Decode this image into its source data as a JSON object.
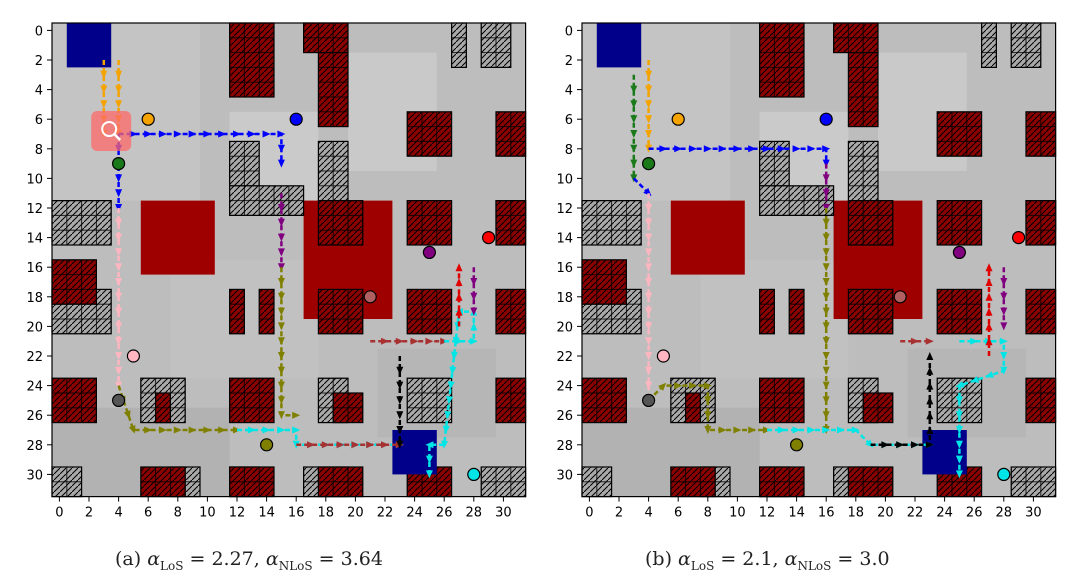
{
  "colors": {
    "wall_gray": "#a9a9a9",
    "wall_red": "#8b0000",
    "start_blue": "#00008b",
    "big_red": "#9e0000",
    "grid_bg": "#bdbdbd"
  },
  "captions": {
    "a": {
      "label": "(a)",
      "p1": "α",
      "s1": "LoS",
      "v1": " = 2.27, ",
      "p2": "α",
      "s2": "NLoS",
      "v2": " = 3.64"
    },
    "b": {
      "label": "(b)",
      "p1": "α",
      "s1": "LoS",
      "v1": " = 2.1, ",
      "p2": "α",
      "s2": "NLoS",
      "v2": " = 3.0"
    }
  },
  "chart_data": [
    {
      "type": "heatmap",
      "title": "",
      "xlim": [
        -0.5,
        31.5
      ],
      "ylim": [
        31.5,
        -0.5
      ],
      "xticks": [
        0,
        2,
        4,
        6,
        8,
        10,
        12,
        14,
        16,
        18,
        20,
        22,
        24,
        26,
        28,
        30
      ],
      "yticks": [
        0,
        2,
        4,
        6,
        8,
        10,
        12,
        14,
        16,
        18,
        20,
        22,
        24,
        26,
        28,
        30
      ],
      "gray_walls": [
        [
          29,
          0,
          2,
          3
        ],
        [
          27,
          0,
          1,
          3
        ],
        [
          12,
          8,
          2,
          4
        ],
        [
          12,
          11,
          5,
          2
        ],
        [
          18,
          8,
          2,
          4
        ],
        [
          0,
          12,
          4,
          3
        ],
        [
          0,
          18,
          4,
          3
        ],
        [
          6,
          24,
          3,
          3
        ],
        [
          18,
          24,
          2,
          3
        ],
        [
          24,
          24,
          3,
          3
        ],
        [
          0,
          30,
          2,
          2
        ],
        [
          17,
          30,
          3,
          2
        ],
        [
          12,
          30,
          2,
          2
        ],
        [
          29,
          30,
          3,
          2
        ],
        [
          8,
          30,
          2,
          2
        ],
        [
          30,
          12,
          2,
          2
        ]
      ],
      "red_walls": [
        [
          12,
          0,
          3,
          5
        ],
        [
          17,
          0,
          3,
          2
        ],
        [
          18,
          2,
          2,
          5
        ],
        [
          24,
          6,
          3,
          3
        ],
        [
          30,
          6,
          2,
          3
        ],
        [
          18,
          12,
          3,
          3
        ],
        [
          24,
          12,
          3,
          3
        ],
        [
          30,
          12,
          2,
          3
        ],
        [
          0,
          16,
          3,
          3
        ],
        [
          18,
          18,
          3,
          3
        ],
        [
          24,
          18,
          3,
          3
        ],
        [
          30,
          18,
          2,
          3
        ],
        [
          12,
          18,
          1,
          3
        ],
        [
          14,
          18,
          1,
          3
        ],
        [
          0,
          24,
          3,
          3
        ],
        [
          7,
          25,
          1,
          2
        ],
        [
          12,
          24,
          3,
          3
        ],
        [
          19,
          25,
          2,
          2
        ],
        [
          30,
          24,
          2,
          3
        ],
        [
          6,
          30,
          3,
          2
        ],
        [
          12,
          30,
          3,
          2
        ],
        [
          18,
          30,
          3,
          2
        ],
        [
          24,
          30,
          3,
          2
        ]
      ],
      "big_red": [
        [
          6,
          12,
          5,
          5
        ],
        [
          17,
          12,
          6,
          8
        ],
        [
          22,
          13,
          1,
          0
        ]
      ],
      "blue_squares": [
        [
          1,
          0,
          3,
          3
        ],
        [
          23,
          27.5,
          3,
          3
        ]
      ],
      "markers": [
        {
          "x": 6,
          "y": 6,
          "color": "#f4a300"
        },
        {
          "x": 16,
          "y": 6,
          "color": "#0000ff"
        },
        {
          "x": 4,
          "y": 9,
          "color": "#1a7a1a"
        },
        {
          "x": 29,
          "y": 14,
          "color": "#ff0000"
        },
        {
          "x": 25,
          "y": 15,
          "color": "#800080"
        },
        {
          "x": 21,
          "y": 18,
          "color": "#b06060"
        },
        {
          "x": 5,
          "y": 22,
          "color": "#ffb6c1"
        },
        {
          "x": 4,
          "y": 25,
          "color": "#555555"
        },
        {
          "x": 14,
          "y": 28,
          "color": "#808000"
        },
        {
          "x": 28,
          "y": 30,
          "color": "#00e5e5"
        }
      ],
      "paths": [
        {
          "name": "orange",
          "color": "#f4a300",
          "points": [
            [
              3,
              2
            ],
            [
              3,
              7
            ]
          ]
        },
        {
          "name": "orange2",
          "color": "#f4a300",
          "points": [
            [
              4,
              2
            ],
            [
              4,
              7
            ]
          ]
        },
        {
          "name": "blue",
          "color": "#0000ff",
          "points": [
            [
              4,
              7
            ],
            [
              15,
              7
            ],
            [
              15,
              9
            ]
          ]
        },
        {
          "name": "blue2",
          "color": "#0000ff",
          "points": [
            [
              4,
              7
            ],
            [
              4,
              12
            ]
          ]
        },
        {
          "name": "pink",
          "color": "#ffb6c1",
          "points": [
            [
              4,
              12
            ],
            [
              4,
              24
            ]
          ]
        },
        {
          "name": "olive",
          "color": "#808000",
          "points": [
            [
              4,
              24
            ],
            [
              5,
              27
            ],
            [
              12,
              27
            ]
          ]
        },
        {
          "name": "purple",
          "color": "#800080",
          "points": [
            [
              15,
              11
            ],
            [
              15,
              16
            ]
          ]
        },
        {
          "name": "olive2",
          "color": "#808000",
          "points": [
            [
              15,
              16
            ],
            [
              15,
              26
            ],
            [
              16,
              26
            ]
          ]
        },
        {
          "name": "cyan",
          "color": "#00e5e5",
          "points": [
            [
              12,
              27
            ],
            [
              16,
              27
            ],
            [
              16,
              28
            ],
            [
              23,
              28
            ]
          ]
        },
        {
          "name": "brown",
          "color": "#a83232",
          "points": [
            [
              16,
              28
            ],
            [
              23,
              28
            ]
          ]
        },
        {
          "name": "brown2",
          "color": "#a83232",
          "points": [
            [
              21,
              21
            ],
            [
              26,
              21
            ]
          ]
        },
        {
          "name": "black",
          "color": "#000000",
          "points": [
            [
              23,
              22
            ],
            [
              23,
              28
            ]
          ]
        },
        {
          "name": "cyan2",
          "color": "#00e5e5",
          "points": [
            [
              26,
              21
            ],
            [
              28,
              21
            ],
            [
              28,
              19
            ],
            [
              27,
              19
            ],
            [
              26,
              28
            ],
            [
              25,
              28
            ],
            [
              25,
              30
            ]
          ]
        },
        {
          "name": "red",
          "color": "#e00000",
          "points": [
            [
              27,
              20
            ],
            [
              27,
              16
            ]
          ]
        },
        {
          "name": "purple2",
          "color": "#800080",
          "points": [
            [
              28,
              16
            ],
            [
              28,
              19
            ]
          ]
        }
      ],
      "start_marker": {
        "x": 3.5,
        "y": 6.8,
        "label": "search"
      }
    },
    {
      "type": "heatmap",
      "title": "",
      "xlim": [
        -0.5,
        31.5
      ],
      "ylim": [
        31.5,
        -0.5
      ],
      "xticks": [
        0,
        2,
        4,
        6,
        8,
        10,
        12,
        14,
        16,
        18,
        20,
        22,
        24,
        26,
        28,
        30
      ],
      "yticks": [
        0,
        2,
        4,
        6,
        8,
        10,
        12,
        14,
        16,
        18,
        20,
        22,
        24,
        26,
        28,
        30
      ],
      "paths": [
        {
          "name": "orange",
          "color": "#f4a300",
          "points": [
            [
              4,
              2
            ],
            [
              4,
              8
            ]
          ]
        },
        {
          "name": "green",
          "color": "#1a7a1a",
          "points": [
            [
              3,
              3
            ],
            [
              3,
              10
            ]
          ]
        },
        {
          "name": "blue",
          "color": "#0000ff",
          "points": [
            [
              4,
              8
            ],
            [
              16,
              8
            ],
            [
              16,
              9
            ]
          ]
        },
        {
          "name": "blue2",
          "color": "#0000ff",
          "points": [
            [
              3,
              10
            ],
            [
              4,
              11
            ]
          ]
        },
        {
          "name": "pink",
          "color": "#ffb6c1",
          "points": [
            [
              4,
              11
            ],
            [
              4,
              25
            ]
          ]
        },
        {
          "name": "olive",
          "color": "#808000",
          "points": [
            [
              4,
              25
            ],
            [
              5,
              24
            ],
            [
              8,
              24
            ],
            [
              8,
              27
            ],
            [
              12,
              27
            ]
          ]
        },
        {
          "name": "purple",
          "color": "#800080",
          "points": [
            [
              16,
              9
            ],
            [
              16,
              12
            ]
          ]
        },
        {
          "name": "olive2",
          "color": "#808000",
          "points": [
            [
              16,
              12
            ],
            [
              16,
              27
            ]
          ]
        },
        {
          "name": "cyan",
          "color": "#00e5e5",
          "points": [
            [
              12,
              27
            ],
            [
              18,
              27
            ],
            [
              19,
              28
            ],
            [
              23,
              28
            ]
          ]
        },
        {
          "name": "black",
          "color": "#000000",
          "points": [
            [
              19,
              28
            ],
            [
              23,
              28
            ],
            [
              23,
              22
            ]
          ]
        },
        {
          "name": "brown",
          "color": "#a83232",
          "points": [
            [
              21,
              21
            ],
            [
              23,
              21
            ]
          ]
        },
        {
          "name": "cyan2",
          "color": "#00e5e5",
          "points": [
            [
              25,
              21
            ],
            [
              28,
              21
            ],
            [
              28,
              23
            ],
            [
              25,
              24
            ],
            [
              25,
              30
            ]
          ]
        },
        {
          "name": "red",
          "color": "#e00000",
          "points": [
            [
              27,
              22
            ],
            [
              27,
              16
            ]
          ]
        },
        {
          "name": "purple2",
          "color": "#800080",
          "points": [
            [
              28,
              16
            ],
            [
              28,
              20
            ]
          ]
        }
      ]
    }
  ]
}
